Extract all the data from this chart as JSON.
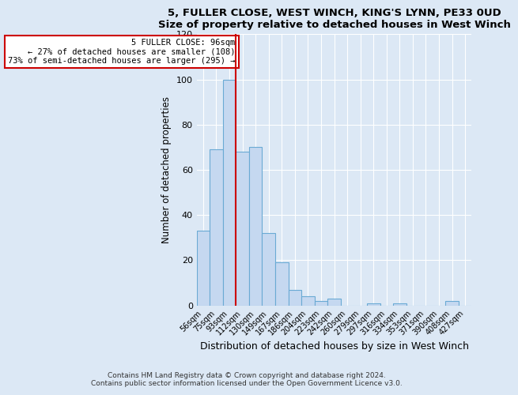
{
  "title1": "5, FULLER CLOSE, WEST WINCH, KING'S LYNN, PE33 0UD",
  "title2": "Size of property relative to detached houses in West Winch",
  "xlabel": "Distribution of detached houses by size in West Winch",
  "ylabel": "Number of detached properties",
  "bin_labels": [
    "56sqm",
    "75sqm",
    "93sqm",
    "112sqm",
    "130sqm",
    "149sqm",
    "167sqm",
    "186sqm",
    "204sqm",
    "223sqm",
    "242sqm",
    "260sqm",
    "279sqm",
    "297sqm",
    "316sqm",
    "334sqm",
    "353sqm",
    "371sqm",
    "390sqm",
    "408sqm",
    "427sqm"
  ],
  "bar_heights": [
    33,
    69,
    100,
    68,
    70,
    32,
    19,
    7,
    4,
    2,
    3,
    0,
    0,
    1,
    0,
    1,
    0,
    0,
    0,
    2,
    0
  ],
  "bar_color": "#c5d8f0",
  "bar_edge_color": "#6aaad4",
  "vline_color": "#cc0000",
  "annotation_title": "5 FULLER CLOSE: 96sqm",
  "annotation_line1": "← 27% of detached houses are smaller (108)",
  "annotation_line2": "73% of semi-detached houses are larger (295) →",
  "annotation_box_color": "#ffffff",
  "annotation_box_edge_color": "#cc0000",
  "ylim": [
    0,
    120
  ],
  "yticks": [
    0,
    20,
    40,
    60,
    80,
    100,
    120
  ],
  "footer1": "Contains HM Land Registry data © Crown copyright and database right 2024.",
  "footer2": "Contains public sector information licensed under the Open Government Licence v3.0.",
  "bg_color": "#dce8f5",
  "plot_bg_color": "#dce8f5",
  "grid_color": "#ffffff"
}
